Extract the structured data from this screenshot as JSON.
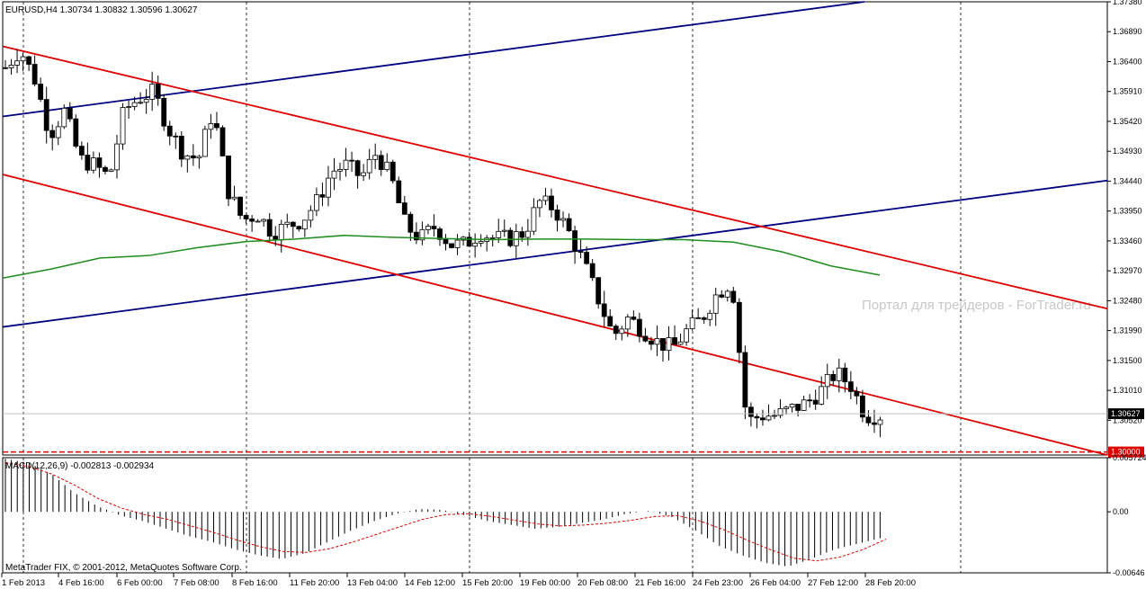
{
  "window": {
    "symbol_header": "EURUSD,H4  1.30734 1.30832 1.30596 1.30627",
    "watermark": "Портал для трейдеров - ForTrader.ru",
    "copyright": "MetaTrader FIX, © 2001-2012, MetaQuotes Software Corp."
  },
  "chart_data": [
    {
      "type": "candlestick",
      "symbol": "EURUSD",
      "timeframe": "H4",
      "quote": {
        "open": 1.30734,
        "high": 1.30832,
        "low": 1.30596,
        "close": 1.30627
      },
      "current_price_label": "1.30627",
      "level_label": "1.30000",
      "y_ticks": [
        "1.37380",
        "1.36890",
        "1.36400",
        "1.35910",
        "1.35420",
        "1.34930",
        "1.34440",
        "1.33950",
        "1.33460",
        "1.32970",
        "1.32480",
        "1.31990",
        "1.31500",
        "1.31010",
        "1.30520"
      ],
      "ylim": [
        1.2995,
        1.3738
      ],
      "x_ticks": [
        "1 Feb 2013",
        "4 Feb 16:00",
        "6 Feb 00:00",
        "7 Feb 08:00",
        "8 Feb 16:00",
        "11 Feb 20:00",
        "13 Feb 04:00",
        "14 Feb 12:00",
        "15 Feb 20:00",
        "19 Feb 00:00",
        "20 Feb 08:00",
        "21 Feb 16:00",
        "24 Feb 23:00",
        "26 Feb 04:00",
        "27 Feb 12:00",
        "28 Feb 20:00"
      ],
      "close_path": [
        1.363,
        1.366,
        1.361,
        1.352,
        1.356,
        1.348,
        1.347,
        1.345,
        1.356,
        1.358,
        1.359,
        1.353,
        1.349,
        1.348,
        1.356,
        1.343,
        1.338,
        1.339,
        1.336,
        1.337,
        1.338,
        1.341,
        1.346,
        1.347,
        1.345,
        1.349,
        1.345,
        1.337,
        1.335,
        1.337,
        1.334,
        1.334,
        1.336,
        1.335,
        1.335,
        1.336,
        1.341,
        1.34,
        1.336,
        1.331,
        1.325,
        1.319,
        1.322,
        1.32,
        1.318,
        1.317,
        1.32,
        1.322,
        1.326,
        1.328,
        1.305,
        1.306,
        1.306,
        1.307,
        1.308,
        1.31,
        1.313,
        1.311,
        1.306,
        1.306
      ],
      "series": [
        {
          "name": "MA",
          "values": [
            1.3285,
            1.33,
            1.3318,
            1.3322,
            1.3335,
            1.3345,
            1.3349,
            1.3355,
            1.3352,
            1.335,
            1.3348,
            1.3349,
            1.3349,
            1.3348,
            1.3348,
            1.3344,
            1.3328,
            1.3305,
            1.329
          ]
        }
      ],
      "trendlines": [
        {
          "color": "#000080",
          "from": [
            0,
            1.355
          ],
          "to": [
            0.78,
            1.3738
          ]
        },
        {
          "color": "#000080",
          "from": [
            0,
            1.3205
          ],
          "to": [
            1,
            1.3445
          ]
        },
        {
          "color": "#e00000",
          "from": [
            0,
            1.3665
          ],
          "to": [
            1,
            1.3235
          ]
        },
        {
          "color": "#e00000",
          "from": [
            0,
            1.3455
          ],
          "to": [
            1,
            1.2995
          ]
        }
      ],
      "colors": {
        "bull": "#ffffff",
        "bear": "#000000",
        "grid": "#000000",
        "ma": "#1e8c1e",
        "price_line": "#c0c0c0",
        "level": "#e00000"
      }
    },
    {
      "type": "bar",
      "title": "MACD(12,26,9) -0.002813 -0.002934",
      "y_ticks": [
        "0.005724",
        "0.00",
        "-0.00646"
      ],
      "ylim": [
        -0.00646,
        0.005724
      ],
      "histogram": [
        0.0056,
        0.0052,
        0.004,
        0.002,
        0.0006,
        -0.0004,
        -0.001,
        -0.0018,
        -0.0026,
        -0.0032,
        -0.004,
        -0.0046,
        -0.005,
        -0.0044,
        -0.0032,
        -0.002,
        -0.001,
        -0.0002,
        0.0003,
        0.0002,
        -0.0004,
        -0.001,
        -0.0014,
        -0.0018,
        -0.0016,
        -0.0012,
        -0.0008,
        -0.0002,
        0.0001,
        -0.0006,
        -0.002,
        -0.0036,
        -0.0046,
        -0.0054,
        -0.0058,
        -0.005,
        -0.004,
        -0.0034,
        -0.0028
      ],
      "signal": [
        0.0052,
        0.0048,
        0.004,
        0.0028,
        0.0014,
        0.0004,
        -0.0003,
        -0.0008,
        -0.0015,
        -0.0022,
        -0.003,
        -0.0037,
        -0.0042,
        -0.0043,
        -0.0039,
        -0.0032,
        -0.0024,
        -0.0016,
        -0.0008,
        -0.0003,
        -0.0002,
        -0.0005,
        -0.0009,
        -0.0013,
        -0.0015,
        -0.0014,
        -0.0012,
        -0.0009,
        -0.0005,
        -0.0004,
        -0.001,
        -0.0019,
        -0.003,
        -0.004,
        -0.0049,
        -0.0052,
        -0.0048,
        -0.004,
        -0.0029
      ],
      "colors": {
        "histogram": "#000000",
        "signal": "#e00000"
      }
    }
  ]
}
